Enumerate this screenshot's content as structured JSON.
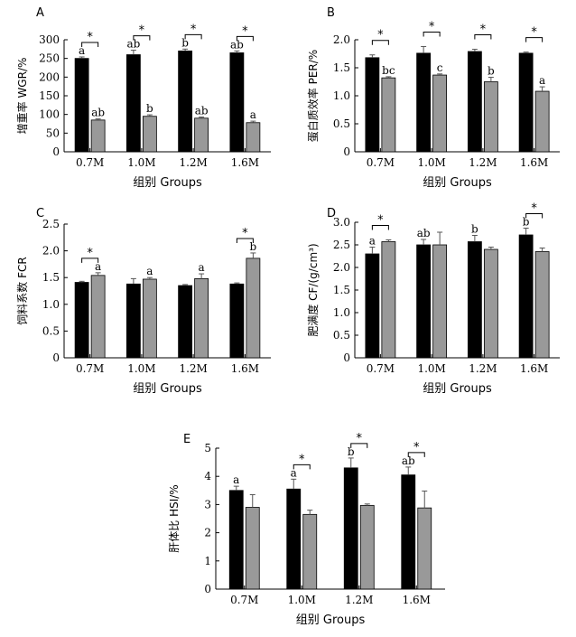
{
  "chart_data": [
    {
      "type": "bar",
      "panel": "A",
      "ylabel": "增重率 WGR/%",
      "xlabel": "组别 Groups",
      "categories": [
        "0.7M",
        "1.0M",
        "1.2M",
        "1.6M"
      ],
      "ylim": [
        0,
        300
      ],
      "yticks": [
        "0",
        "50",
        "100",
        "150",
        "200",
        "250",
        "300"
      ],
      "series": [
        {
          "color": "#000000",
          "values": [
            250,
            260,
            270,
            265
          ],
          "errors": [
            4,
            12,
            5,
            5
          ],
          "labels": [
            "a",
            "ab",
            "b",
            "ab"
          ]
        },
        {
          "color": "#999999",
          "values": [
            85,
            95,
            90,
            78
          ],
          "errors": [
            3,
            4,
            3,
            4
          ],
          "labels": [
            "ab",
            "b",
            "ab",
            "a"
          ]
        }
      ],
      "significance": [
        "*",
        "*",
        "*",
        "*"
      ]
    },
    {
      "type": "bar",
      "panel": "B",
      "ylabel": "蛋白质效率 PER/%",
      "xlabel": "组别 Groups",
      "categories": [
        "0.7M",
        "1.0M",
        "1.2M",
        "1.6M"
      ],
      "ylim": [
        0,
        2.0
      ],
      "yticks": [
        "0",
        "0.5",
        "1.0",
        "1.5",
        "2.0"
      ],
      "series": [
        {
          "color": "#000000",
          "values": [
            1.68,
            1.76,
            1.79,
            1.76
          ],
          "errors": [
            0.05,
            0.12,
            0.04,
            0.02
          ],
          "labels": [
            "",
            "",
            "",
            ""
          ]
        },
        {
          "color": "#999999",
          "values": [
            1.32,
            1.37,
            1.25,
            1.08
          ],
          "errors": [
            0.02,
            0.02,
            0.08,
            0.08
          ],
          "labels": [
            "bc",
            "c",
            "b",
            "a"
          ]
        }
      ],
      "significance": [
        "*",
        "*",
        "*",
        "*"
      ]
    },
    {
      "type": "bar",
      "panel": "C",
      "ylabel": "饲料系数 FCR",
      "xlabel": "组别 Groups",
      "categories": [
        "0.7M",
        "1.0M",
        "1.2M",
        "1.6M"
      ],
      "ylim": [
        0,
        2.5
      ],
      "yticks": [
        "0",
        "0.5",
        "1.0",
        "1.5",
        "2.0",
        "2.5"
      ],
      "series": [
        {
          "color": "#000000",
          "values": [
            1.41,
            1.38,
            1.35,
            1.38
          ],
          "errors": [
            0.02,
            0.1,
            0.02,
            0.02
          ],
          "labels": [
            "",
            "",
            "",
            ""
          ]
        },
        {
          "color": "#999999",
          "values": [
            1.54,
            1.47,
            1.48,
            1.86
          ],
          "errors": [
            0.05,
            0.03,
            0.09,
            0.1
          ],
          "labels": [
            "a",
            "a",
            "a",
            "b"
          ]
        }
      ],
      "significance": [
        "*",
        "",
        "",
        "*"
      ]
    },
    {
      "type": "bar",
      "panel": "D",
      "ylabel": "肥满度 CF/(g/cm³)",
      "xlabel": "组别 Groups",
      "categories": [
        "0.7M",
        "1.0M",
        "1.2M",
        "1.6M"
      ],
      "ylim": [
        0,
        3.0
      ],
      "yticks": [
        "0",
        "0.5",
        "1.0",
        "1.5",
        "2.0",
        "2.5",
        "3.0"
      ],
      "series": [
        {
          "color": "#000000",
          "values": [
            2.3,
            2.5,
            2.57,
            2.72
          ],
          "errors": [
            0.15,
            0.12,
            0.14,
            0.15
          ],
          "labels": [
            "a",
            "ab",
            "b",
            "b"
          ]
        },
        {
          "color": "#999999",
          "values": [
            2.57,
            2.5,
            2.4,
            2.35
          ],
          "errors": [
            0.04,
            0.28,
            0.05,
            0.08
          ],
          "labels": [
            "",
            "",
            "",
            ""
          ]
        }
      ],
      "significance": [
        "*",
        "",
        "",
        "*"
      ]
    },
    {
      "type": "bar",
      "panel": "E",
      "ylabel": "肝体比 HSI/%",
      "xlabel": "组别 Groups",
      "categories": [
        "0.7M",
        "1.0M",
        "1.2M",
        "1.6M"
      ],
      "ylim": [
        0,
        5
      ],
      "yticks": [
        "0",
        "1",
        "2",
        "3",
        "4",
        "5"
      ],
      "series": [
        {
          "color": "#000000",
          "values": [
            3.5,
            3.55,
            4.3,
            4.05
          ],
          "errors": [
            0.15,
            0.35,
            0.35,
            0.28
          ],
          "labels": [
            "a",
            "a",
            "b",
            "ab"
          ]
        },
        {
          "color": "#999999",
          "values": [
            2.9,
            2.65,
            2.97,
            2.88
          ],
          "errors": [
            0.45,
            0.15,
            0.05,
            0.6
          ],
          "labels": [
            "",
            "",
            "",
            ""
          ]
        }
      ],
      "significance": [
        "",
        "*",
        "*",
        "*"
      ]
    }
  ]
}
